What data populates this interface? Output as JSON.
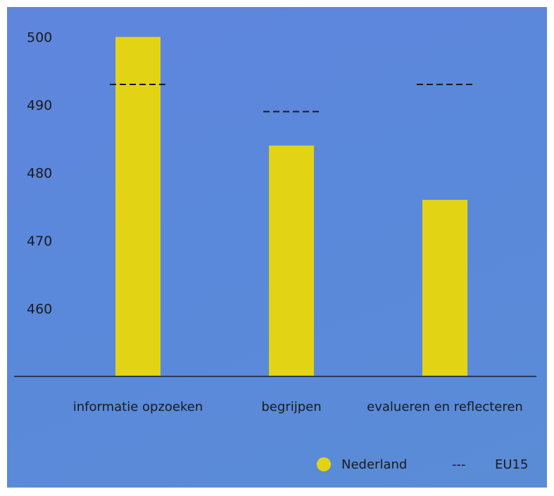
{
  "chart_data": {
    "type": "bar",
    "categories": [
      "informatie opzoeken",
      "begrijpen",
      "evalueren en reflecteren"
    ],
    "series": [
      {
        "name": "Nederland",
        "values": [
          500,
          484,
          476
        ],
        "color": "#e2d414",
        "style": "bar"
      },
      {
        "name": "EU15",
        "values": [
          493,
          489,
          493
        ],
        "color": "#1b1b1b",
        "style": "dashed-line"
      }
    ],
    "y_ticks": [
      460,
      470,
      480,
      490,
      500
    ],
    "ylim": [
      450,
      503
    ],
    "grid": false,
    "legend_position": "bottom-right",
    "legend": [
      {
        "label": "Nederland",
        "symbol": "circle",
        "color": "#e2d414"
      },
      {
        "label": "EU15",
        "symbol": "dashes",
        "color": "#1b1b1b"
      }
    ]
  },
  "colors": {
    "background": "#5a88db",
    "bar": "#e2d414",
    "axis": "#2b3a5a",
    "text": "#1b1b1b"
  }
}
